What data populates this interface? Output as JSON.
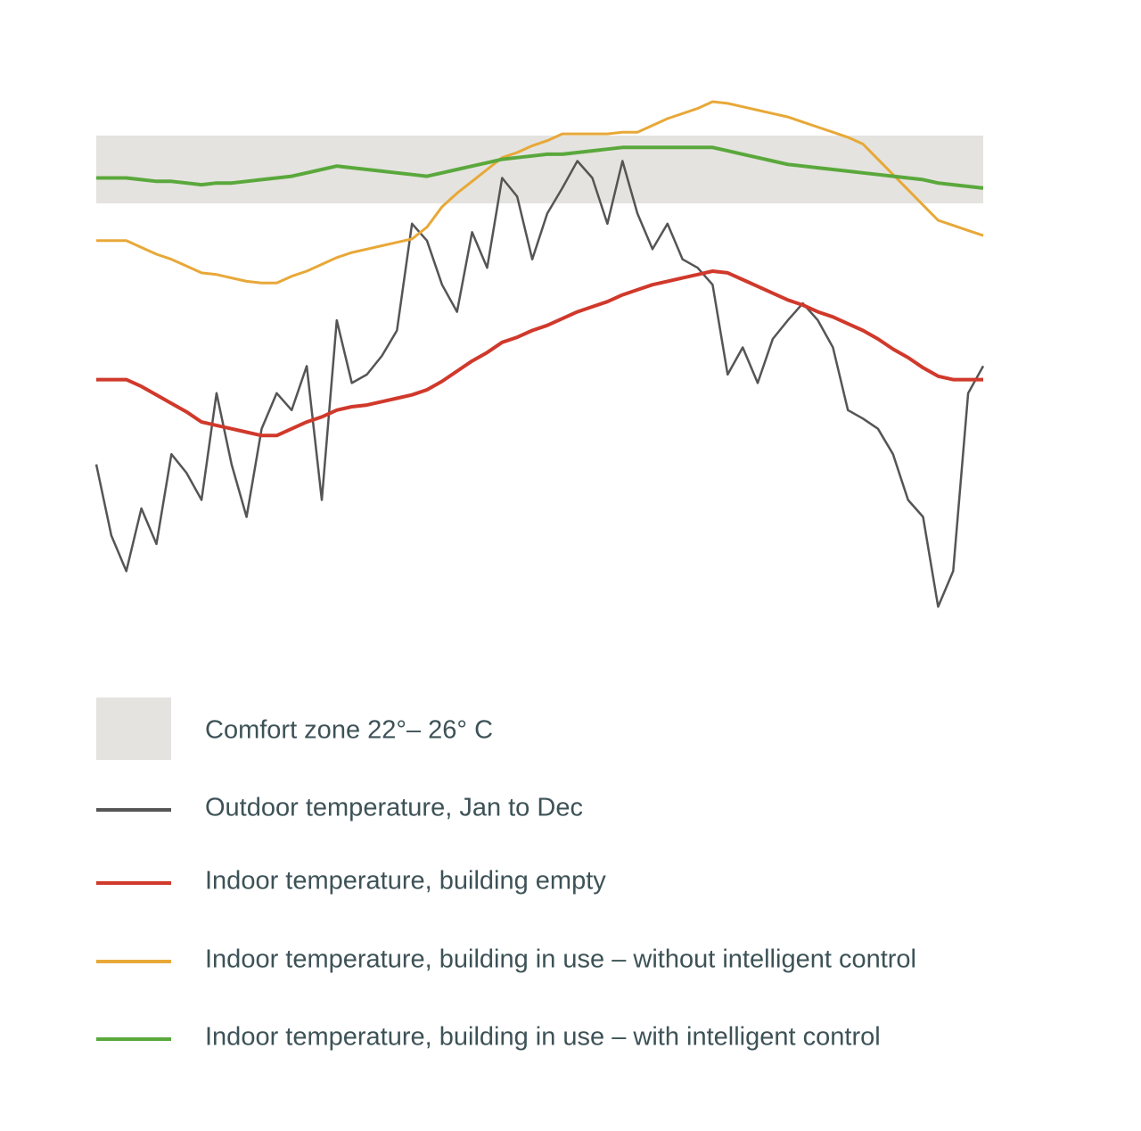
{
  "chart_data": {
    "type": "line",
    "ylim": [
      -3,
      29
    ],
    "comfort_zone": {
      "name": "Comfort zone 22°– 26° C",
      "color": "#e4e3df",
      "values": [
        22,
        26
      ]
    },
    "series": [
      {
        "name": "Outdoor temperature, Jan to Dec",
        "color": "#555555",
        "width": 2.5,
        "values": [
          6.6,
          2.4,
          0.3,
          4.0,
          1.9,
          7.2,
          6.1,
          4.5,
          10.8,
          6.6,
          3.5,
          8.7,
          10.8,
          9.8,
          12.4,
          4.5,
          15.1,
          11.4,
          11.9,
          13.0,
          14.5,
          20.8,
          19.8,
          17.2,
          15.6,
          20.3,
          18.2,
          23.5,
          22.4,
          18.7,
          21.4,
          22.9,
          24.5,
          23.5,
          20.8,
          24.5,
          21.4,
          19.3,
          20.8,
          18.7,
          18.2,
          17.2,
          11.9,
          13.5,
          11.4,
          14.0,
          15.1,
          16.1,
          15.1,
          13.5,
          9.8,
          9.3,
          8.7,
          7.2,
          4.5,
          3.5,
          -1.8,
          0.3,
          10.8,
          12.4
        ]
      },
      {
        "name": "Indoor temperature, building empty",
        "color": "#d0392b",
        "width": 4,
        "values": [
          11.6,
          11.6,
          11.6,
          11.2,
          10.7,
          10.2,
          9.7,
          9.1,
          8.9,
          8.7,
          8.5,
          8.3,
          8.3,
          8.7,
          9.1,
          9.4,
          9.8,
          10.0,
          10.1,
          10.3,
          10.5,
          10.7,
          11.0,
          11.5,
          12.1,
          12.7,
          13.2,
          13.8,
          14.1,
          14.5,
          14.8,
          15.2,
          15.6,
          15.9,
          16.2,
          16.6,
          16.9,
          17.2,
          17.4,
          17.6,
          17.8,
          18.0,
          17.9,
          17.5,
          17.1,
          16.7,
          16.3,
          16.0,
          15.6,
          15.3,
          14.9,
          14.5,
          14.0,
          13.4,
          12.9,
          12.3,
          11.8,
          11.6,
          11.6,
          11.6
        ]
      },
      {
        "name": "Indoor temperature, building in use – without intelligent control",
        "color": "#e8a838",
        "width": 3,
        "values": [
          19.8,
          19.8,
          19.8,
          19.4,
          19.0,
          18.7,
          18.3,
          17.9,
          17.8,
          17.6,
          17.4,
          17.3,
          17.3,
          17.7,
          18.0,
          18.4,
          18.8,
          19.1,
          19.3,
          19.5,
          19.7,
          19.9,
          20.6,
          21.8,
          22.6,
          23.3,
          24.0,
          24.7,
          25.0,
          25.4,
          25.7,
          26.1,
          26.1,
          26.1,
          26.1,
          26.2,
          26.2,
          26.6,
          27.0,
          27.3,
          27.6,
          28.0,
          27.9,
          27.7,
          27.5,
          27.3,
          27.1,
          26.8,
          26.5,
          26.2,
          25.9,
          25.5,
          24.6,
          23.7,
          22.8,
          21.9,
          21.0,
          20.7,
          20.4,
          20.1
        ]
      },
      {
        "name": "Indoor temperature, building in use – with intelligent control",
        "color": "#5aa83c",
        "width": 4,
        "values": [
          23.5,
          23.5,
          23.5,
          23.4,
          23.3,
          23.3,
          23.2,
          23.1,
          23.2,
          23.2,
          23.3,
          23.4,
          23.5,
          23.6,
          23.8,
          24.0,
          24.2,
          24.1,
          24.0,
          23.9,
          23.8,
          23.7,
          23.6,
          23.8,
          24.0,
          24.2,
          24.4,
          24.6,
          24.7,
          24.8,
          24.9,
          24.9,
          25.0,
          25.1,
          25.2,
          25.3,
          25.3,
          25.3,
          25.3,
          25.3,
          25.3,
          25.3,
          25.1,
          24.9,
          24.7,
          24.5,
          24.3,
          24.2,
          24.1,
          24.0,
          23.9,
          23.8,
          23.7,
          23.6,
          23.5,
          23.4,
          23.2,
          23.1,
          23.0,
          22.9
        ]
      }
    ]
  }
}
